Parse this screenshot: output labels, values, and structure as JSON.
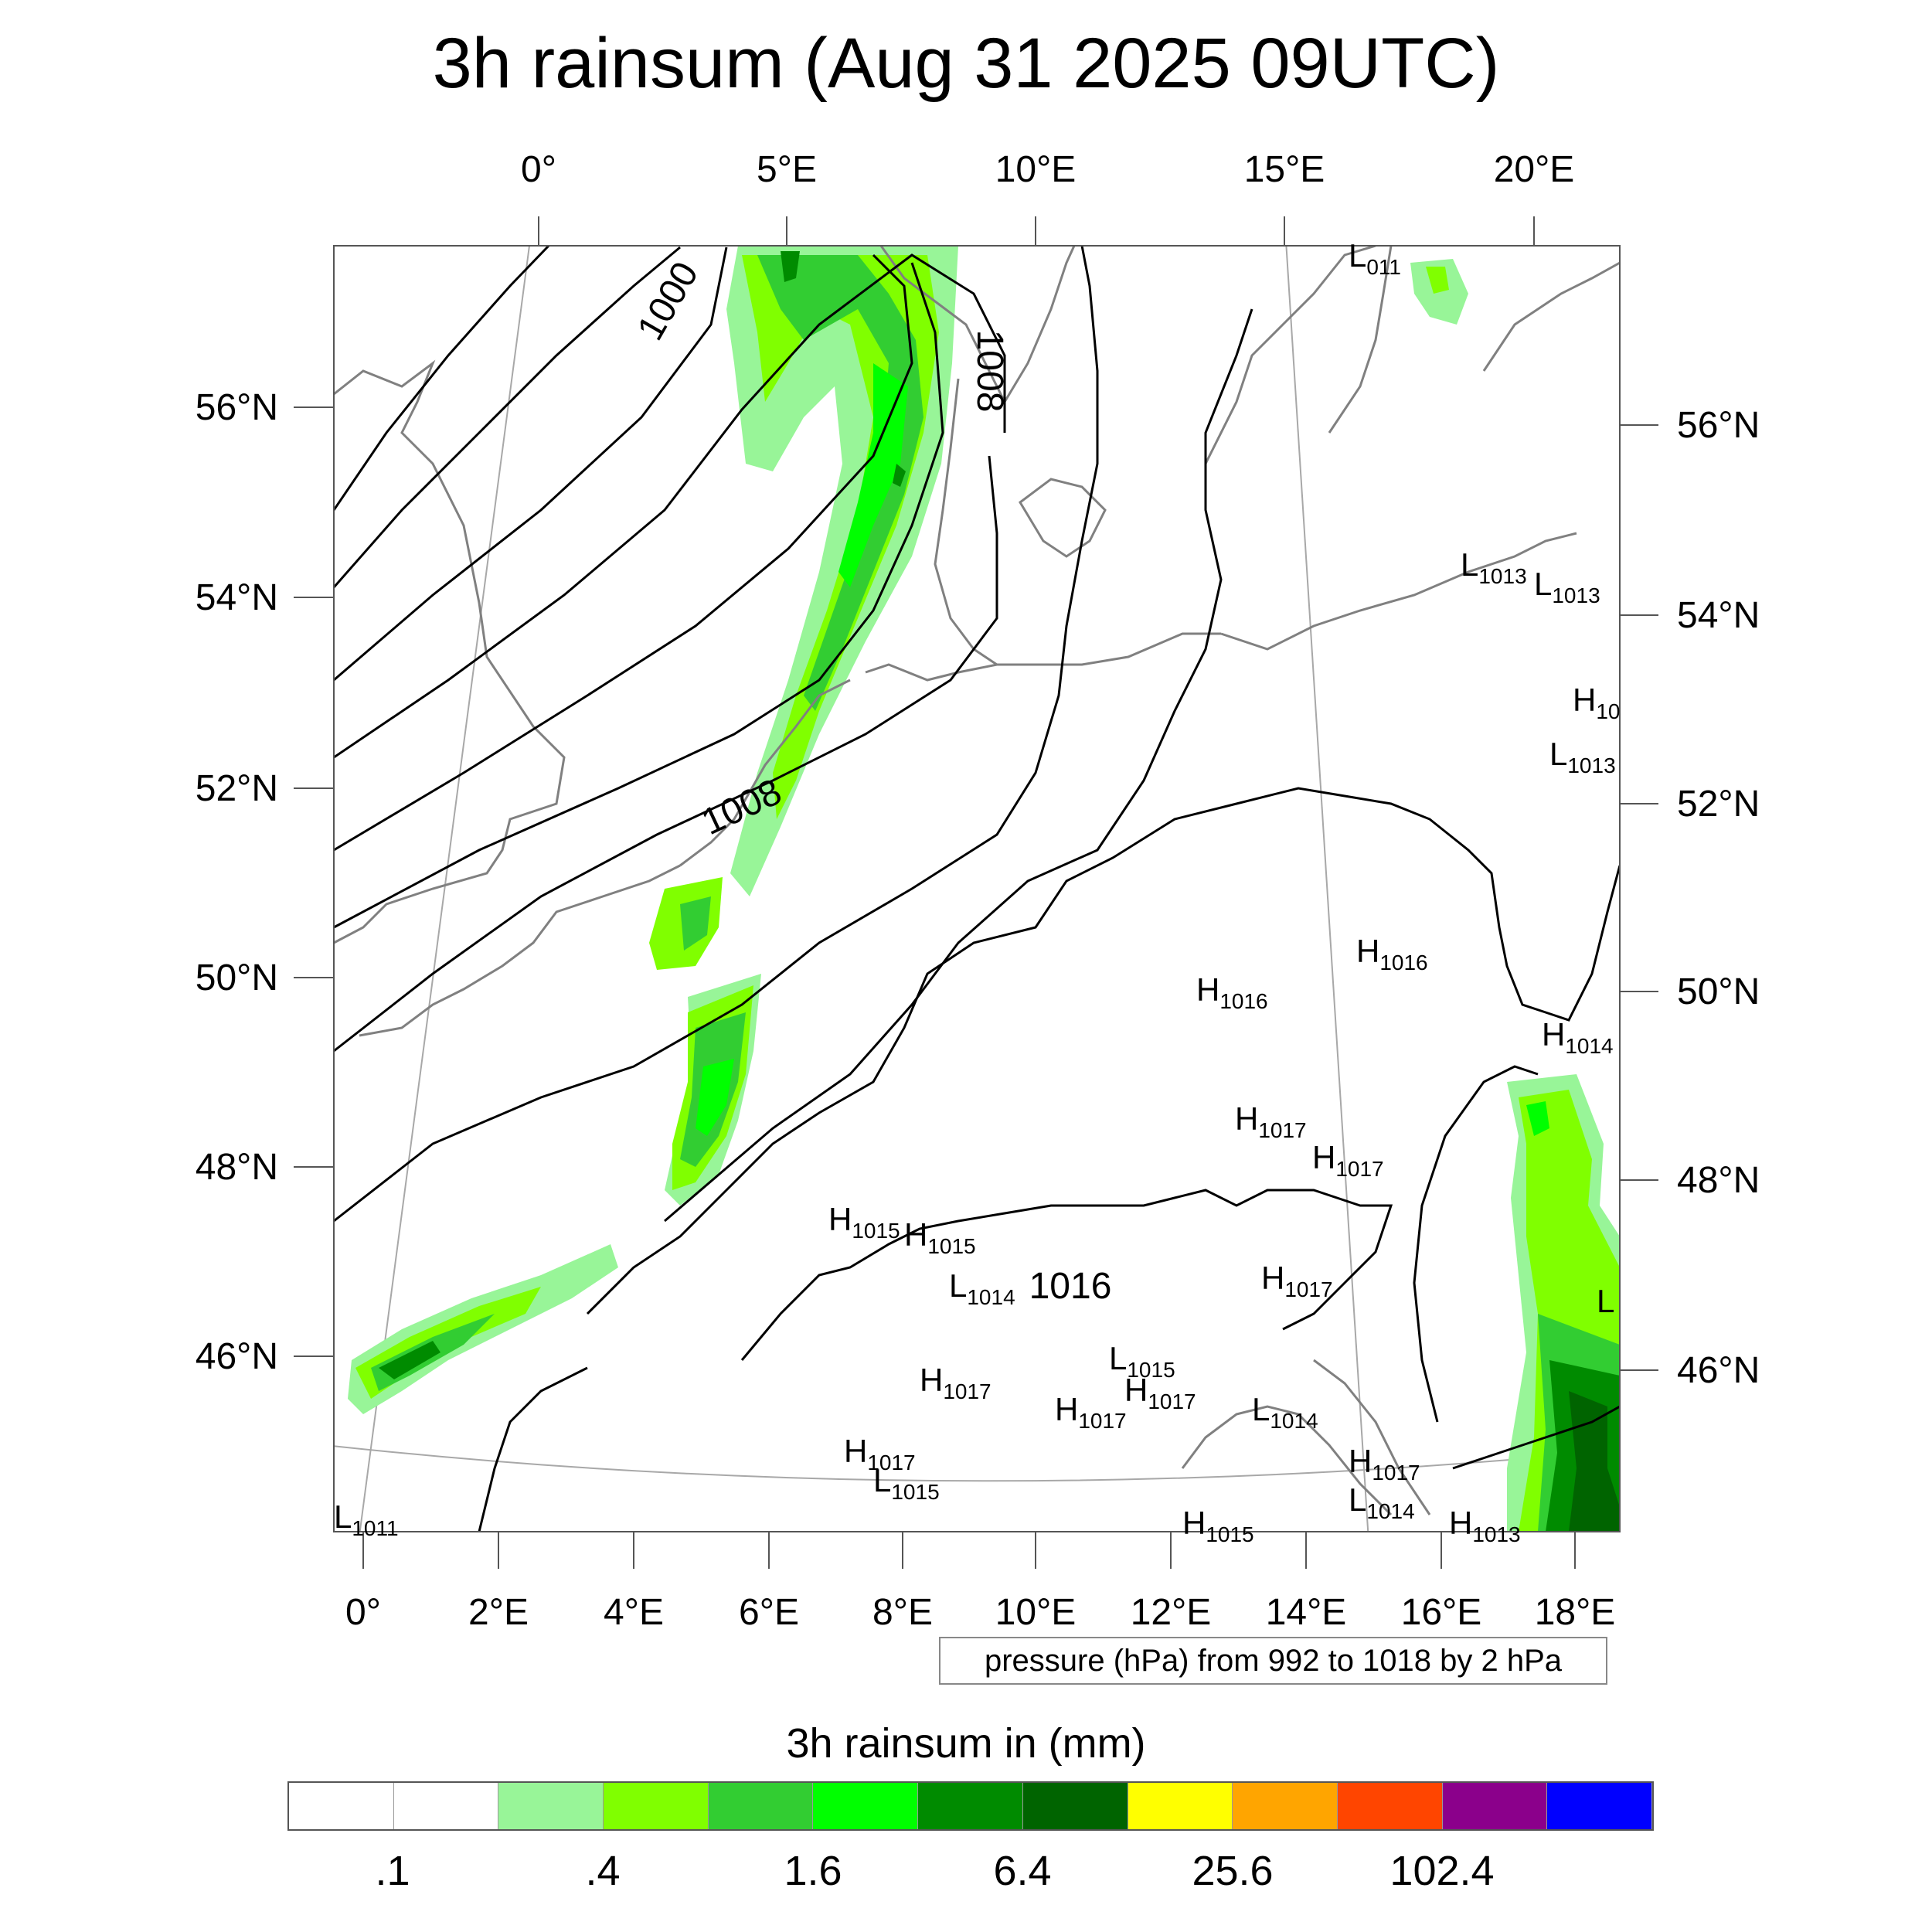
{
  "title": "3h rainsum (Aug 31 2025 09UTC)",
  "top_lon_labels": [
    "0°",
    "5°E",
    "10°E",
    "15°E",
    "20°E"
  ],
  "left_lat_labels": [
    "56°N",
    "54°N",
    "52°N",
    "50°N",
    "48°N",
    "46°N"
  ],
  "right_lat_labels": [
    "56°N",
    "54°N",
    "52°N",
    "50°N",
    "48°N",
    "46°N"
  ],
  "bottom_lon_labels": [
    "0°",
    "2°E",
    "4°E",
    "6°E",
    "8°E",
    "10°E",
    "12°E",
    "14°E",
    "16°E",
    "18°E"
  ],
  "contour_labels": [
    "1000",
    "1008",
    "1008",
    "1016"
  ],
  "pressure_centers": [
    {
      "letter": "L",
      "value": "011"
    },
    {
      "letter": "L",
      "value": "1013"
    },
    {
      "letter": "L",
      "value": "1013"
    },
    {
      "letter": "H",
      "value": "10"
    },
    {
      "letter": "L",
      "value": "1013"
    },
    {
      "letter": "H",
      "value": "1016"
    },
    {
      "letter": "H",
      "value": "1016"
    },
    {
      "letter": "H",
      "value": "1014"
    },
    {
      "letter": "H",
      "value": "1017"
    },
    {
      "letter": "H",
      "value": "1017"
    },
    {
      "letter": "H",
      "value": "1015"
    },
    {
      "letter": "H",
      "value": "1015"
    },
    {
      "letter": "L",
      "value": "1014"
    },
    {
      "letter": "H",
      "value": "1017"
    },
    {
      "letter": "L",
      "value": "1015"
    },
    {
      "letter": "H",
      "value": "1017"
    },
    {
      "letter": "H",
      "value": "1017"
    },
    {
      "letter": "H",
      "value": "1017"
    },
    {
      "letter": "L",
      "value": "1014"
    },
    {
      "letter": "H",
      "value": "1017"
    },
    {
      "letter": "L",
      "value": "1015"
    },
    {
      "letter": "H",
      "value": "1017"
    },
    {
      "letter": "L",
      "value": "1014"
    },
    {
      "letter": "L",
      "value": "1011"
    },
    {
      "letter": "H",
      "value": "1015"
    },
    {
      "letter": "H",
      "value": "1013"
    },
    {
      "letter": "L",
      "value": ""
    }
  ],
  "pressure_note": "pressure (hPa) from 992 to 1018 by 2 hPa",
  "colorbar": {
    "title": "3h rainsum in (mm)",
    "colors": [
      "#ffffff",
      "#ffffff",
      "#98f598",
      "#80ff00",
      "#32cd32",
      "#00ff00",
      "#008b00",
      "#006400",
      "#ffff00",
      "#ffa500",
      "#ff4500",
      "#8b008b",
      "#0000ff"
    ],
    "labels": [
      ".1",
      ".4",
      "1.6",
      "6.4",
      "25.6",
      "102.4"
    ]
  },
  "colors": {
    "coast": "#808080",
    "isobar": "#000000",
    "graticule": "#a0a0a0"
  },
  "rain_color_levels": {
    "light": "#98f598",
    "lightmid": "#80ff00",
    "mid": "#32cd32",
    "bright": "#00ff00",
    "dark": "#008b00",
    "darkest": "#006400"
  }
}
